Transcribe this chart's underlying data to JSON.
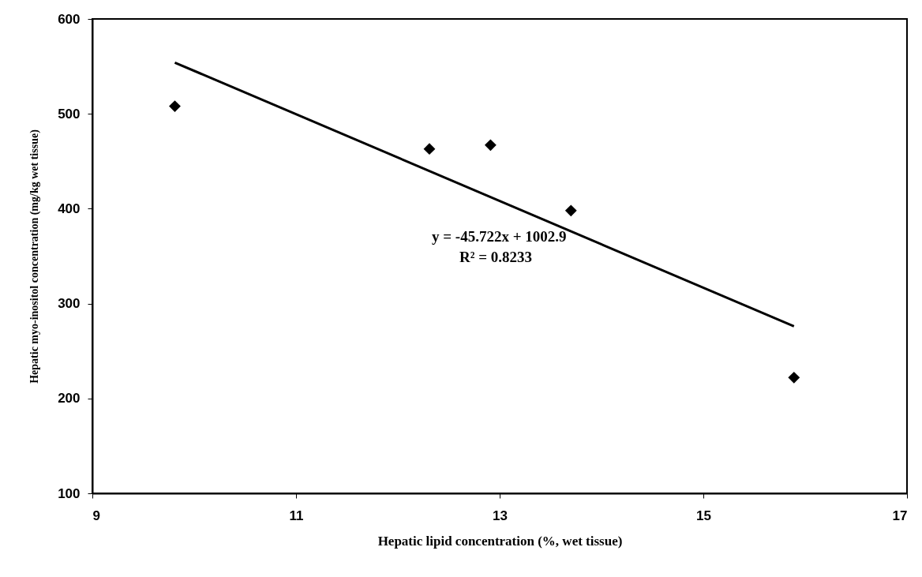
{
  "chart_data": {
    "type": "scatter",
    "xlabel": "Hepatic lipid concentration (%, wet tissue)",
    "ylabel": "Hepatic myo-inositol concentration (mg/kg wet tissue)",
    "xlim": [
      9,
      17
    ],
    "xticks": [
      9,
      11,
      13,
      15,
      17
    ],
    "ylim": [
      100,
      600
    ],
    "yticks": [
      100,
      200,
      300,
      400,
      500,
      600
    ],
    "grid": false,
    "marker": "diamond",
    "series": [
      {
        "color": "#000000",
        "x": [
          9.81,
          12.31,
          12.91,
          13.7,
          15.89
        ],
        "values": [
          508,
          463,
          467,
          398,
          222
        ]
      },
      {
        "type": "line",
        "color": "#000000",
        "marker": "none",
        "x": [
          9.81,
          15.89
        ],
        "values": [
          554,
          276
        ]
      }
    ],
    "annotations": [
      "y = -45.722x + 1002.9",
      "R² = 0.8233"
    ]
  }
}
